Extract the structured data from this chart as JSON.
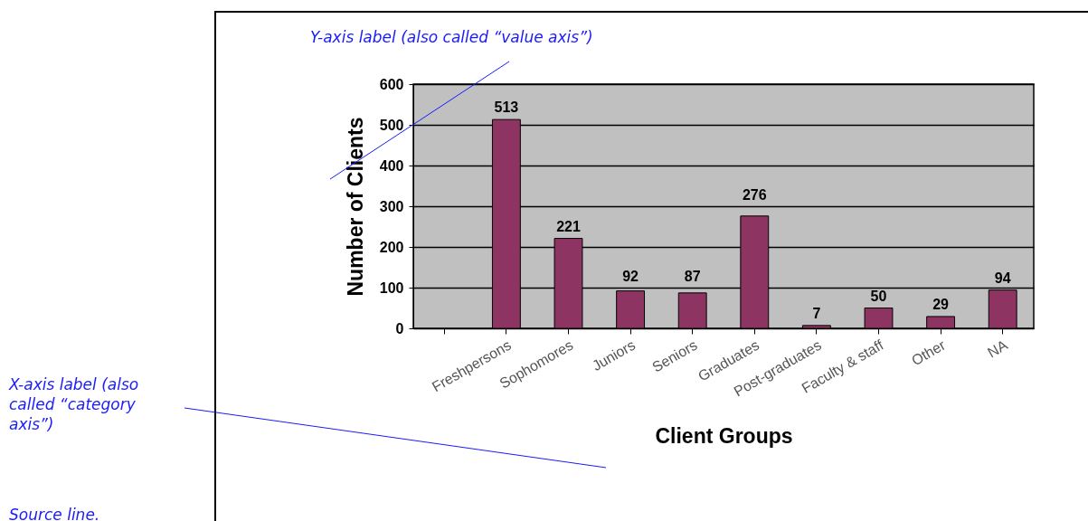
{
  "chart_data": {
    "type": "bar",
    "xlabel": "Client Groups",
    "ylabel": "Number of Clients",
    "categories": [
      null,
      "Freshpersons",
      "Sophomores",
      "Juniors",
      "Seniors",
      "Graduates",
      "Post-graduates",
      "Faculty & staff",
      "Other",
      "NA"
    ],
    "values": [
      null,
      513,
      221,
      92,
      87,
      276,
      7,
      50,
      29,
      94
    ],
    "color": "#8e3462",
    "ylim": [
      0,
      600
    ],
    "yticks": [
      0,
      100,
      200,
      300,
      400,
      500,
      600
    ],
    "grid": "y",
    "data_labels": true,
    "annotations": [
      "Y-axis label (also called “value axis”)",
      "X-axis label (also called “category axis”)",
      "Source line."
    ]
  }
}
